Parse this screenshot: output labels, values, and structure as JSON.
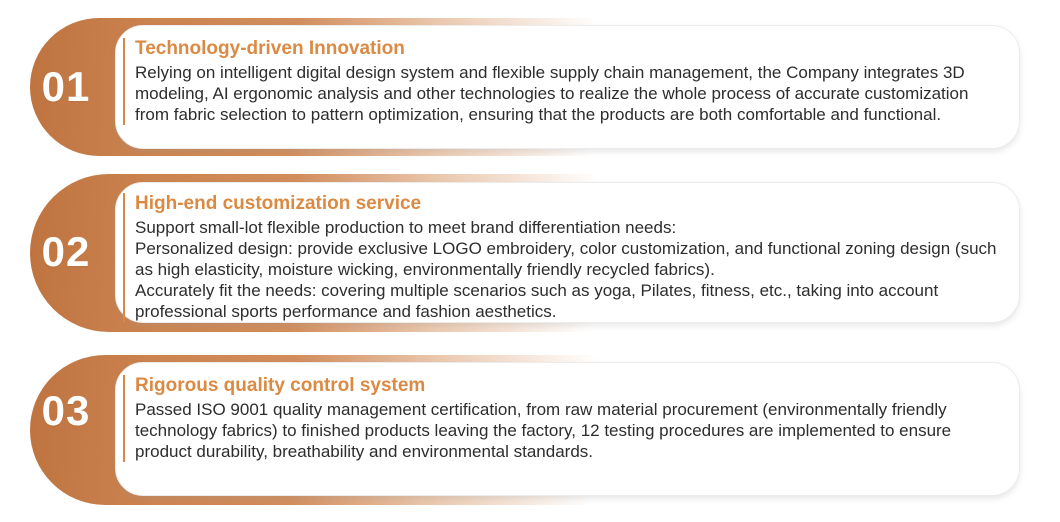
{
  "colors": {
    "accent_orange": "#db8a43",
    "pill_orange_dark": "#bf7440",
    "pill_orange_light": "#d89b6b",
    "number_text": "#ffffff",
    "body_text": "#2d2d2d",
    "card_background": "#ffffff"
  },
  "sections": [
    {
      "number": "01",
      "title": "Technology-driven Innovation",
      "paragraphs": [
        "Relying on intelligent digital design system and flexible supply chain management, the Company integrates 3D modeling, AI ergonomic analysis and other technologies to realize the whole process of accurate customization from fabric selection to pattern optimization, ensuring that the products are both comfortable and functional."
      ]
    },
    {
      "number": "02",
      "title": "High-end customization service",
      "paragraphs": [
        "Support small-lot flexible production to meet brand differentiation needs:",
        "Personalized design: provide exclusive LOGO embroidery, color customization, and functional zoning design (such as high elasticity, moisture wicking, environmentally friendly recycled fabrics).",
        "Accurately fit the needs: covering multiple scenarios such as yoga, Pilates, fitness, etc., taking into account professional sports performance and fashion aesthetics."
      ]
    },
    {
      "number": "03",
      "title": "Rigorous quality control system",
      "paragraphs": [
        "Passed ISO 9001 quality management certification, from raw material procurement (environmentally friendly technology fabrics) to finished products leaving the factory, 12 testing procedures are implemented to ensure product durability, breathability and environmental standards."
      ]
    }
  ]
}
